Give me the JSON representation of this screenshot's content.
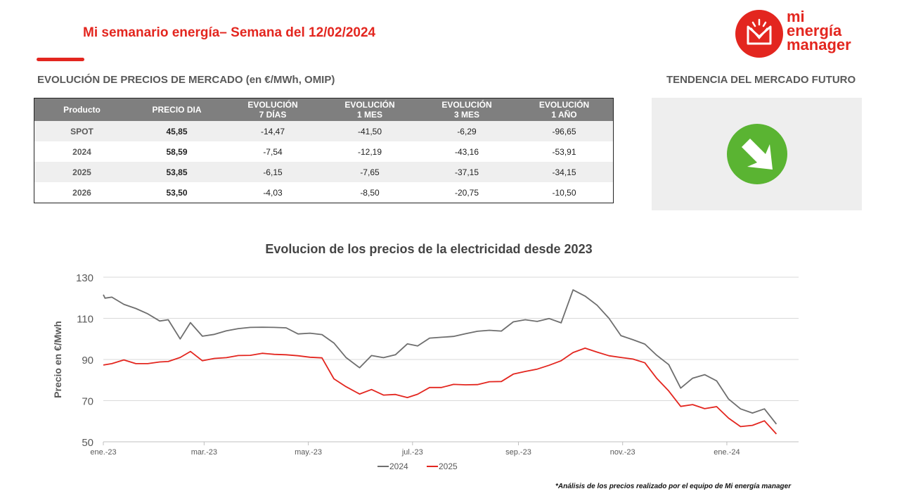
{
  "header": {
    "title": "Mi semanario energía– Semana del 12/02/2024",
    "logo_lines": [
      "mi",
      "energía",
      "manager"
    ]
  },
  "market_section": {
    "title": "EVOLUCIÓN DE PRECIOS DE MERCADO (en €/MWh, OMIP)",
    "columns": [
      {
        "line1": "Producto",
        "line2": ""
      },
      {
        "line1": "PRECIO DIA",
        "line2": ""
      },
      {
        "line1": "EVOLUCIÓN",
        "line2": "7 DÍAS"
      },
      {
        "line1": "EVOLUCIÓN",
        "line2": "1 MES"
      },
      {
        "line1": "EVOLUCIÓN",
        "line2": "3 MES"
      },
      {
        "line1": "EVOLUCIÓN",
        "line2": "1 AÑO"
      }
    ],
    "rows": [
      [
        "SPOT",
        "45,85",
        "-14,47",
        "-41,50",
        "-6,29",
        "-96,65"
      ],
      [
        "2024",
        "58,59",
        "-7,54",
        "-12,19",
        "-43,16",
        "-53,91"
      ],
      [
        "2025",
        "53,85",
        "-6,15",
        "-7,65",
        "-37,15",
        "-34,15"
      ],
      [
        "2026",
        "53,50",
        "-4,03",
        "-8,50",
        "-20,75",
        "-10,50"
      ]
    ]
  },
  "trend_section": {
    "title": "TENDENCIA DEL MERCADO FUTURO",
    "icon": "down-right-arrow-icon",
    "icon_color": "#5ab432"
  },
  "colors": {
    "accent": "#e3261f",
    "series_2024": "#6e6e6e",
    "series_2025": "#e3261f"
  },
  "chart_data": {
    "type": "line",
    "title": "Evolucion de los precios de la electricidad desde 2023",
    "ylabel": "Precio en €/Mwh",
    "xlabel": "",
    "ylim": [
      50,
      130
    ],
    "yticks": [
      130,
      110,
      90,
      70,
      50
    ],
    "xlim": [
      "2023-01-01",
      "2024-02-12"
    ],
    "xticks": [
      {
        "date": "2023-01-01",
        "label": "ene.-23"
      },
      {
        "date": "2023-03-01",
        "label": "mar.-23"
      },
      {
        "date": "2023-05-01",
        "label": "may.-23"
      },
      {
        "date": "2023-07-01",
        "label": "jul.-23"
      },
      {
        "date": "2023-09-01",
        "label": "sep.-23"
      },
      {
        "date": "2023-11-01",
        "label": "nov.-23"
      },
      {
        "date": "2024-01-01",
        "label": "ene.-24"
      }
    ],
    "grid": true,
    "legend": "bottom",
    "series": [
      {
        "name": "2024",
        "color": "#6e6e6e",
        "points": [
          [
            "2023-01-01",
            121.5
          ],
          [
            "2023-01-02",
            119.8
          ],
          [
            "2023-01-06",
            120.3
          ],
          [
            "2023-01-13",
            116.8
          ],
          [
            "2023-01-20",
            114.8
          ],
          [
            "2023-01-27",
            112.2
          ],
          [
            "2023-02-03",
            108.7
          ],
          [
            "2023-02-08",
            109.3
          ],
          [
            "2023-02-15",
            100.0
          ],
          [
            "2023-02-21",
            107.9
          ],
          [
            "2023-02-28",
            101.3
          ],
          [
            "2023-03-07",
            102.2
          ],
          [
            "2023-03-14",
            103.9
          ],
          [
            "2023-03-21",
            105.0
          ],
          [
            "2023-03-28",
            105.6
          ],
          [
            "2023-04-04",
            105.7
          ],
          [
            "2023-04-11",
            105.6
          ],
          [
            "2023-04-18",
            105.4
          ],
          [
            "2023-04-25",
            102.4
          ],
          [
            "2023-05-02",
            102.8
          ],
          [
            "2023-05-09",
            102.1
          ],
          [
            "2023-05-16",
            98.0
          ],
          [
            "2023-05-23",
            91.0
          ],
          [
            "2023-05-31",
            86.0
          ],
          [
            "2023-06-07",
            91.9
          ],
          [
            "2023-06-14",
            90.9
          ],
          [
            "2023-06-21",
            92.3
          ],
          [
            "2023-06-28",
            97.6
          ],
          [
            "2023-07-04",
            96.6
          ],
          [
            "2023-07-11",
            100.4
          ],
          [
            "2023-07-18",
            100.8
          ],
          [
            "2023-07-25",
            101.2
          ],
          [
            "2023-08-01",
            102.5
          ],
          [
            "2023-08-08",
            103.7
          ],
          [
            "2023-08-15",
            104.2
          ],
          [
            "2023-08-22",
            103.8
          ],
          [
            "2023-08-29",
            108.3
          ],
          [
            "2023-09-05",
            109.3
          ],
          [
            "2023-09-12",
            108.5
          ],
          [
            "2023-09-19",
            109.9
          ],
          [
            "2023-09-26",
            107.8
          ],
          [
            "2023-10-03",
            123.8
          ],
          [
            "2023-10-10",
            120.8
          ],
          [
            "2023-10-17",
            116.4
          ],
          [
            "2023-10-24",
            110.0
          ],
          [
            "2023-10-31",
            101.6
          ],
          [
            "2023-11-07",
            99.6
          ],
          [
            "2023-11-14",
            97.5
          ],
          [
            "2023-11-21",
            92.0
          ],
          [
            "2023-11-28",
            87.5
          ],
          [
            "2023-12-05",
            76.1
          ],
          [
            "2023-12-12",
            80.9
          ],
          [
            "2023-12-19",
            82.6
          ],
          [
            "2023-12-26",
            79.6
          ],
          [
            "2024-01-02",
            70.8
          ],
          [
            "2024-01-09",
            66.0
          ],
          [
            "2024-01-16",
            64.0
          ],
          [
            "2024-01-23",
            66.0
          ],
          [
            "2024-01-30",
            58.6
          ]
        ]
      },
      {
        "name": "2025",
        "color": "#e3261f",
        "points": [
          [
            "2023-01-01",
            87.3
          ],
          [
            "2023-01-06",
            88.0
          ],
          [
            "2023-01-13",
            89.8
          ],
          [
            "2023-01-20",
            88.0
          ],
          [
            "2023-01-27",
            88.0
          ],
          [
            "2023-02-03",
            88.8
          ],
          [
            "2023-02-08",
            89.0
          ],
          [
            "2023-02-15",
            91.0
          ],
          [
            "2023-02-21",
            93.9
          ],
          [
            "2023-02-28",
            89.4
          ],
          [
            "2023-03-07",
            90.5
          ],
          [
            "2023-03-14",
            90.9
          ],
          [
            "2023-03-21",
            91.9
          ],
          [
            "2023-03-28",
            92.0
          ],
          [
            "2023-04-04",
            93.0
          ],
          [
            "2023-04-11",
            92.5
          ],
          [
            "2023-04-18",
            92.3
          ],
          [
            "2023-04-25",
            91.8
          ],
          [
            "2023-05-02",
            91.1
          ],
          [
            "2023-05-09",
            90.8
          ],
          [
            "2023-05-16",
            80.6
          ],
          [
            "2023-05-23",
            76.8
          ],
          [
            "2023-05-31",
            73.2
          ],
          [
            "2023-06-07",
            75.4
          ],
          [
            "2023-06-14",
            72.7
          ],
          [
            "2023-06-21",
            73.0
          ],
          [
            "2023-06-28",
            71.5
          ],
          [
            "2023-07-04",
            73.1
          ],
          [
            "2023-07-11",
            76.4
          ],
          [
            "2023-07-18",
            76.4
          ],
          [
            "2023-07-25",
            77.9
          ],
          [
            "2023-08-01",
            77.7
          ],
          [
            "2023-08-08",
            77.8
          ],
          [
            "2023-08-15",
            79.2
          ],
          [
            "2023-08-22",
            79.3
          ],
          [
            "2023-08-29",
            82.9
          ],
          [
            "2023-09-05",
            84.2
          ],
          [
            "2023-09-12",
            85.3
          ],
          [
            "2023-09-19",
            87.2
          ],
          [
            "2023-09-26",
            89.4
          ],
          [
            "2023-10-03",
            93.4
          ],
          [
            "2023-10-10",
            95.5
          ],
          [
            "2023-10-17",
            93.6
          ],
          [
            "2023-10-24",
            91.8
          ],
          [
            "2023-10-31",
            91.0
          ],
          [
            "2023-11-07",
            90.2
          ],
          [
            "2023-11-14",
            88.4
          ],
          [
            "2023-11-21",
            80.8
          ],
          [
            "2023-11-28",
            74.7
          ],
          [
            "2023-12-05",
            67.2
          ],
          [
            "2023-12-12",
            68.1
          ],
          [
            "2023-12-19",
            66.1
          ],
          [
            "2023-12-26",
            67.1
          ],
          [
            "2024-01-02",
            61.5
          ],
          [
            "2024-01-09",
            57.4
          ],
          [
            "2024-01-16",
            58.0
          ],
          [
            "2024-01-23",
            60.2
          ],
          [
            "2024-01-30",
            53.8
          ]
        ]
      }
    ]
  },
  "footnote": "*Análisis de los precios realizado por el equipo de Mi energía manager"
}
